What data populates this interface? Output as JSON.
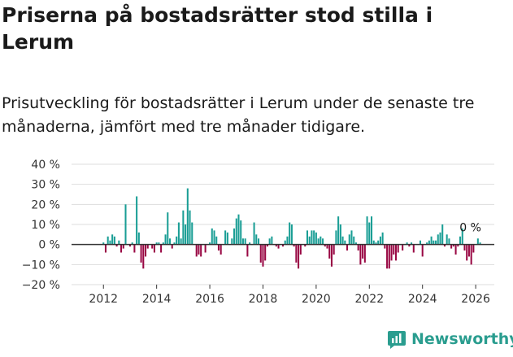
{
  "title": "Priserna på bostadsrätter stod stilla i Lerum",
  "subtitle": "Prisutveckling för bostadsrätter i Lerum under de senaste tre månaderna, jämfört med tre månader tidigare.",
  "brand": "Newsworthy",
  "colors": {
    "positive": "#1a9e95",
    "negative": "#990844",
    "grid": "#dddddd",
    "zero": "#333333",
    "brand": "#2a9d8f"
  },
  "chart_data": {
    "type": "bar",
    "title": "Priserna på bostadsrätter stod stilla i Lerum",
    "ylabel": "",
    "xlabel": "",
    "ylim": [
      -20,
      40
    ],
    "y_ticks": [
      -20,
      -10,
      0,
      10,
      20,
      30,
      40
    ],
    "y_tick_labels": [
      "−20 %",
      "−10 %",
      "0 %",
      "10 %",
      "20 %",
      "30 %",
      "40 %"
    ],
    "x_tick_labels": [
      "2012",
      "2014",
      "2016",
      "2018",
      "2020",
      "2022",
      "2024",
      "2026"
    ],
    "x_ticks": [
      2012,
      2014,
      2016,
      2018,
      2020,
      2022,
      2024,
      2026
    ],
    "x_range": [
      2010.8,
      2026.7
    ],
    "start_year": 2012,
    "annotation": "0 %",
    "series": [
      {
        "name": "Prisutveckling",
        "values": [
          1,
          -4,
          4,
          2,
          5,
          4,
          -1,
          2,
          -4,
          -2,
          20,
          0,
          -1,
          1,
          -4,
          24,
          6,
          -9,
          -12,
          -6,
          -2,
          0,
          -2,
          -4,
          1,
          1,
          -4,
          1,
          5,
          16,
          3,
          -2,
          1,
          4,
          11,
          3,
          17,
          10,
          28,
          17,
          11,
          0,
          -6,
          -5,
          -6,
          0,
          -4,
          0,
          1,
          8,
          7,
          4,
          -3,
          -5,
          0,
          7,
          6,
          0,
          3,
          8,
          13,
          15,
          12,
          3,
          3,
          -6,
          1,
          0,
          11,
          5,
          3,
          -9,
          -11,
          -8,
          -1,
          3,
          4,
          0,
          -1,
          -2,
          0,
          -1,
          2,
          4,
          11,
          10,
          -1,
          -9,
          -12,
          -5,
          0,
          -1,
          7,
          4,
          7,
          7,
          6,
          3,
          4,
          3,
          -1,
          -2,
          -7,
          -11,
          -5,
          7,
          14,
          10,
          4,
          2,
          -3,
          5,
          7,
          4,
          1,
          -3,
          -10,
          -7,
          -9,
          14,
          11,
          14,
          2,
          1,
          2,
          4,
          6,
          -2,
          -12,
          -12,
          -8,
          -5,
          -8,
          -4,
          0,
          -3,
          0,
          1,
          -1,
          1,
          -4,
          0,
          0,
          2,
          -6,
          0,
          1,
          2,
          4,
          2,
          2,
          5,
          6,
          10,
          -1,
          5,
          3,
          -2,
          -1,
          -5,
          -1,
          4,
          8,
          -3,
          -8,
          -6,
          -10,
          -4,
          0,
          3,
          1
        ],
        "annotation": "0 %"
      }
    ]
  }
}
